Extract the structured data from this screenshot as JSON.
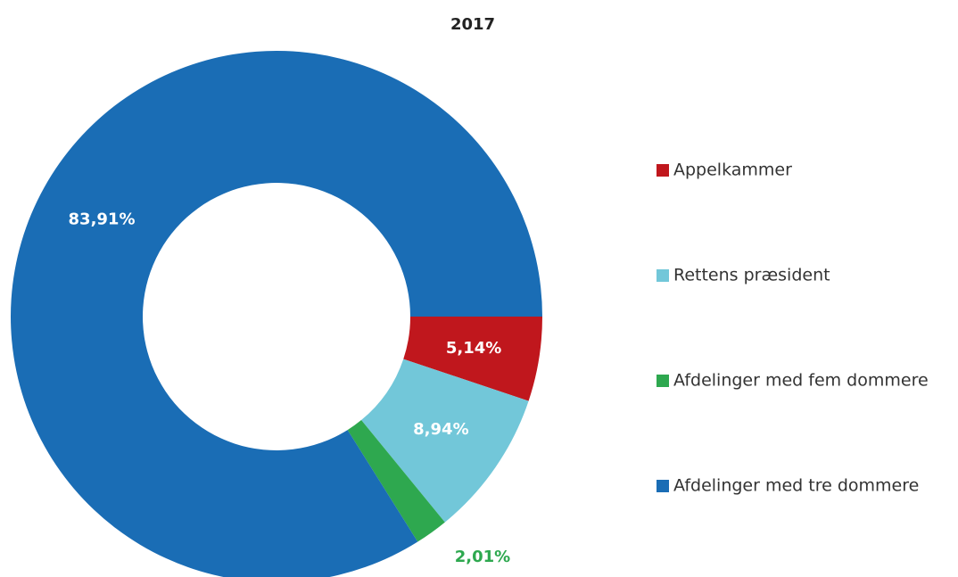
{
  "chart_data": {
    "type": "donut",
    "title": "2017",
    "categories": [
      "Appelkammer",
      "Rettens præsident",
      "Afdelinger med fem dommere",
      "Afdelinger med tre dommere"
    ],
    "values": [
      5.14,
      8.94,
      2.01,
      83.91
    ],
    "value_labels": [
      "5,14%",
      "8,94%",
      "2,01%",
      "83,91%"
    ],
    "colors": [
      "#c0171d",
      "#72c7d9",
      "#2ea84f",
      "#1a6db5"
    ],
    "legend": "right"
  }
}
